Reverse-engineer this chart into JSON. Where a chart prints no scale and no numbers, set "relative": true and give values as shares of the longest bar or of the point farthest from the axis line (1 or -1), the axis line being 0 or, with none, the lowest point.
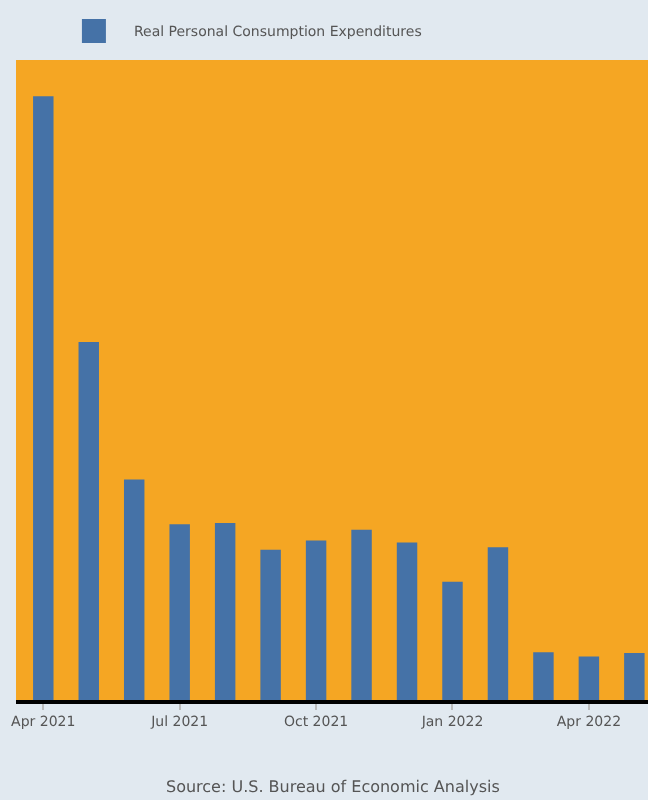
{
  "chart_data": {
    "type": "bar",
    "relative": true,
    "categories": [
      "Apr 2021",
      null,
      null,
      "Jul 2021",
      null,
      null,
      "Oct 2021",
      null,
      null,
      "Jan 2022",
      null,
      null,
      "Apr 2022",
      null
    ],
    "series": [
      {
        "name": "Real Personal Consumption Expenditures",
        "color": "#4572a7",
        "values": [
          1,
          0.593,
          0.365,
          0.291,
          0.293,
          0.249,
          0.264,
          0.282,
          0.261,
          0.196,
          0.253,
          0.079,
          0.072,
          0.078
        ]
      }
    ],
    "annotations": [
      "Source: U.S. Bureau of Economic Analysis"
    ],
    "legend": "top left"
  }
}
